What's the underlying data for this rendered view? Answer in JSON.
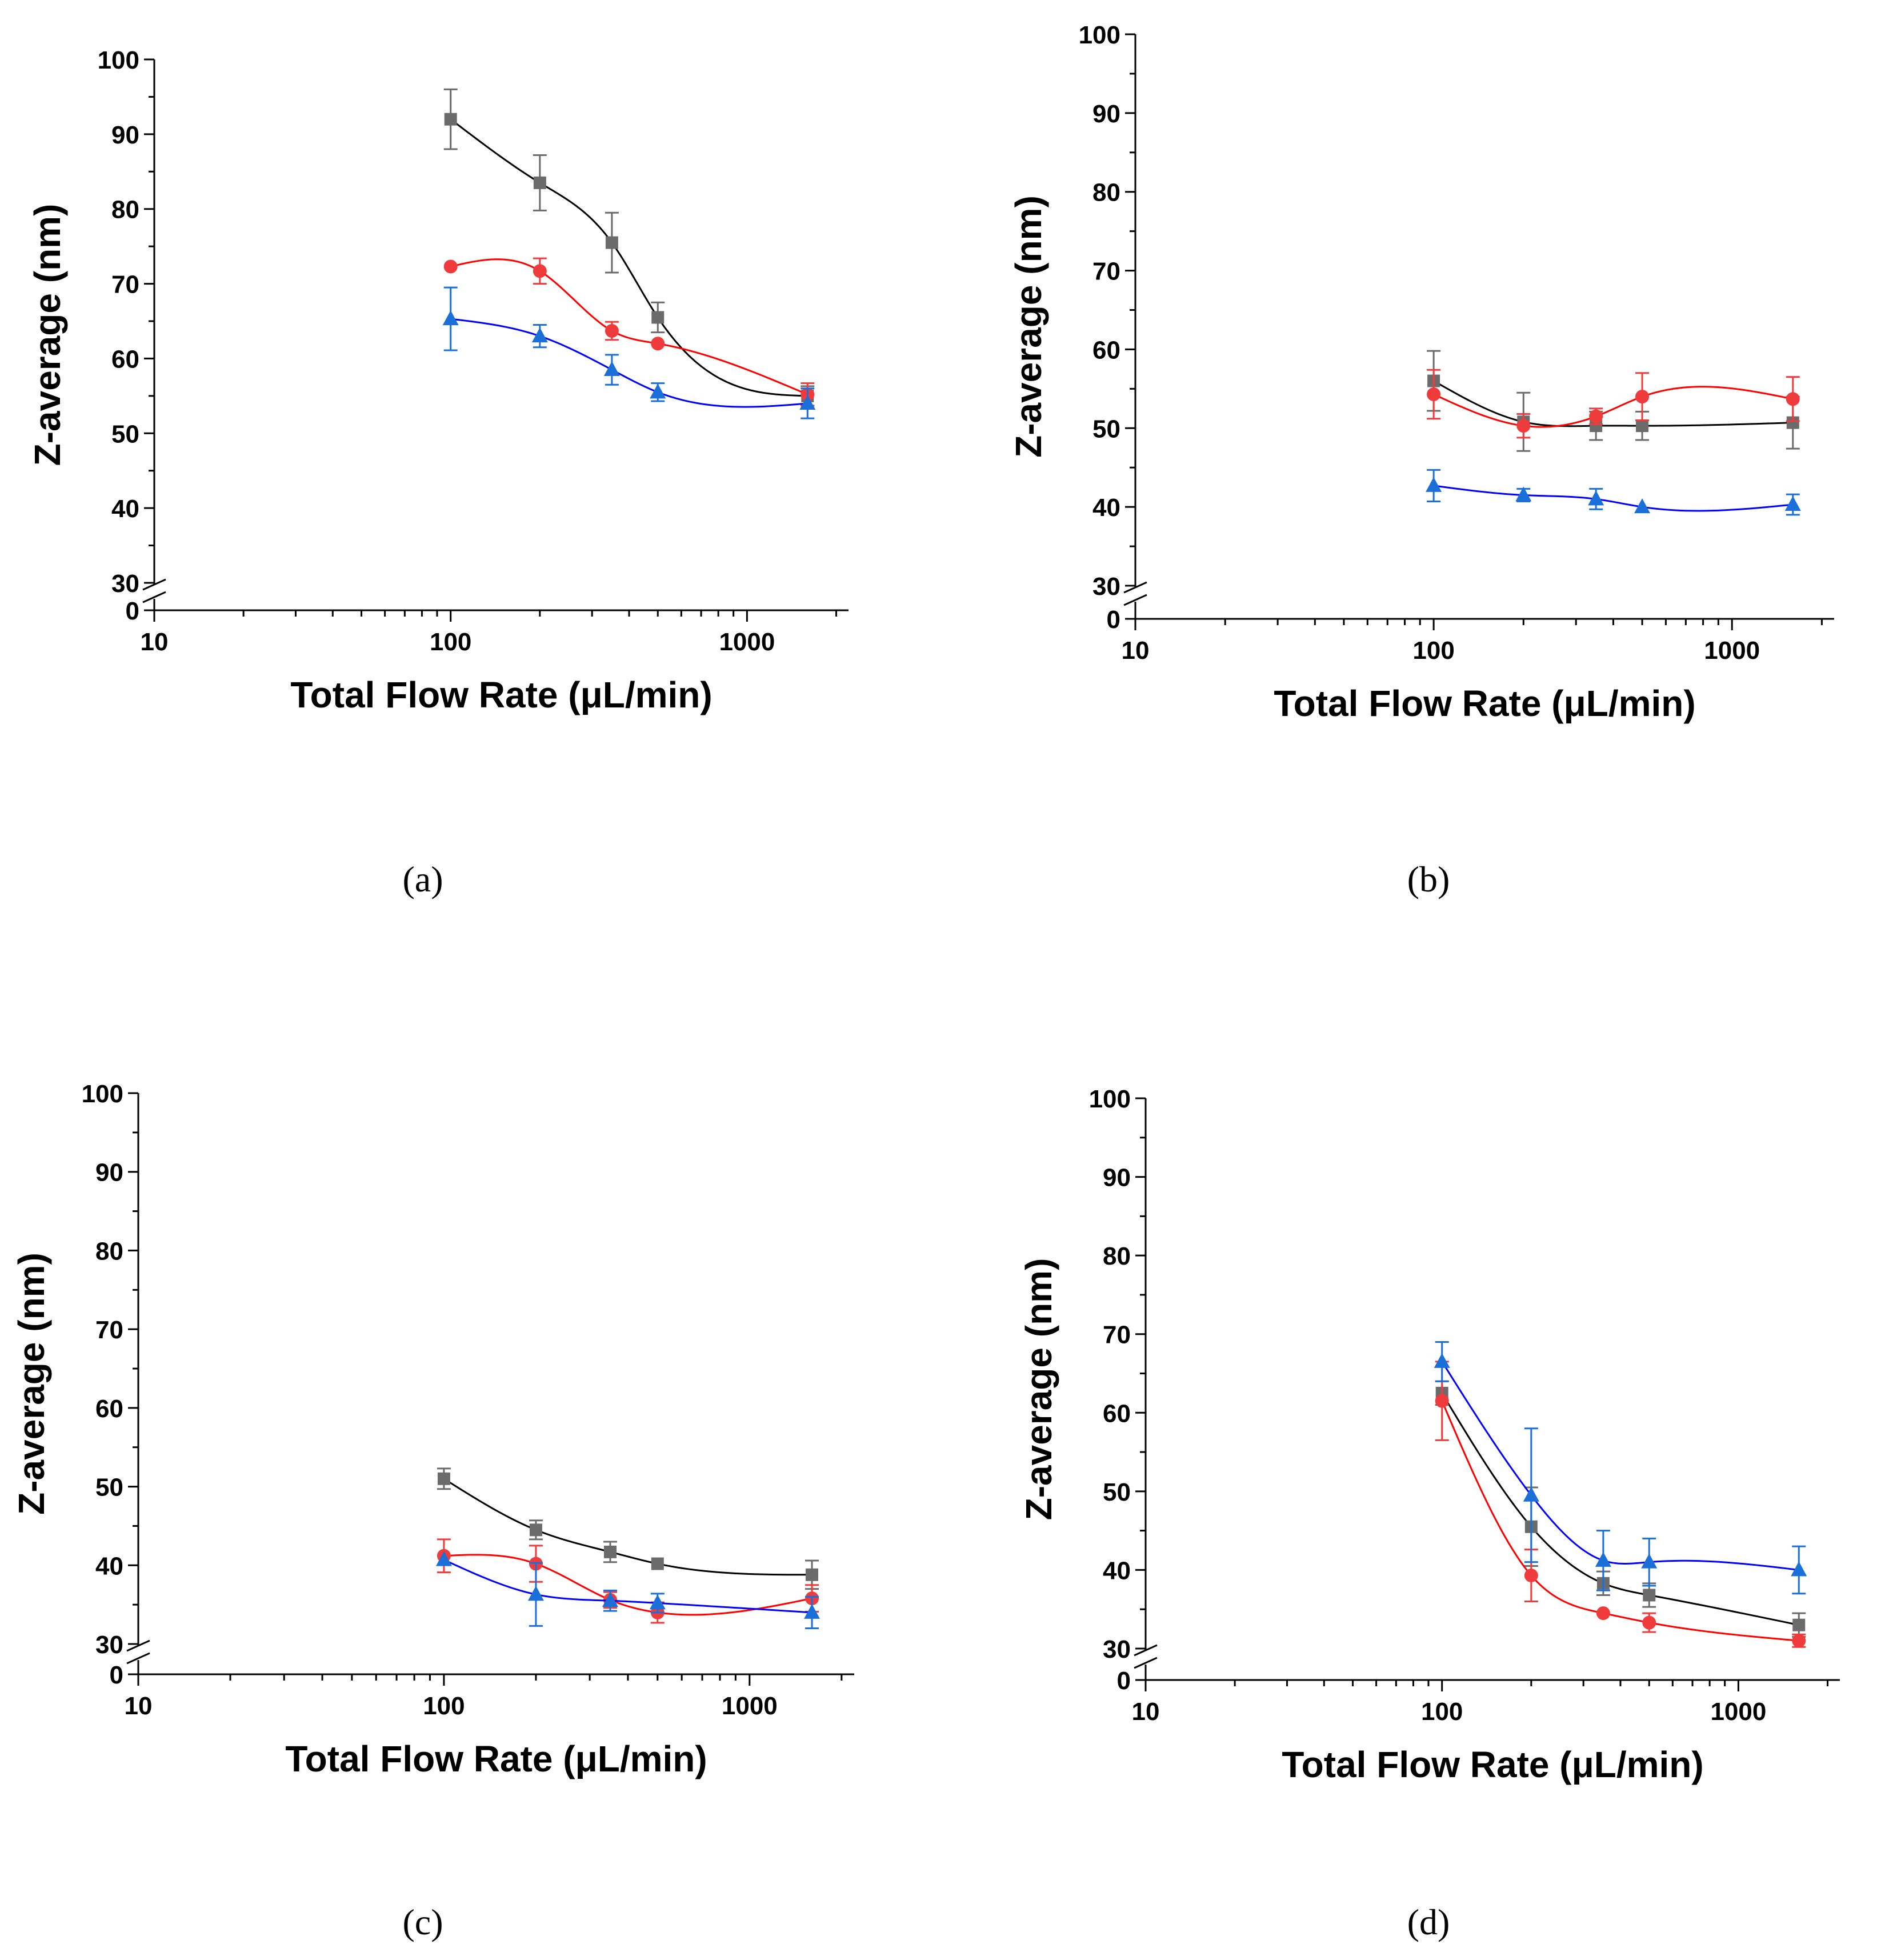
{
  "chart_data": [
    {
      "panel": "a",
      "caption": "(a)",
      "type": "scatter",
      "xlabel": "Total Flow Rate (μL/min)",
      "ylabel": "Z-average (nm)",
      "xscale": "log",
      "xlim": [
        10,
        2200
      ],
      "ylim": [
        30,
        100
      ],
      "axis_break": "between 0 and 30",
      "x_ticks": [
        10,
        100,
        1000
      ],
      "x_tick_labels": [
        "10",
        "100",
        "1000"
      ],
      "y_ticks": [
        0,
        30,
        40,
        50,
        60,
        70,
        80,
        90,
        100
      ],
      "y_tick_labels": [
        "0",
        "30",
        "40",
        "50",
        "60",
        "70",
        "80",
        "90",
        "100"
      ],
      "series": [
        {
          "name": "gray squares",
          "marker": "square",
          "color": "#6b6b6b",
          "line_color": "#000000",
          "x": [
            100,
            200,
            350,
            500,
            1600
          ],
          "y": [
            92,
            83.5,
            75.5,
            65.5,
            55
          ],
          "err": [
            4,
            3.7,
            4,
            2,
            1.3
          ]
        },
        {
          "name": "red circles",
          "marker": "circle",
          "color": "#ef3b3b",
          "line_color": "#ff0000",
          "x": [
            100,
            200,
            350,
            500,
            1600
          ],
          "y": [
            72.3,
            71.7,
            63.7,
            62,
            55.2
          ],
          "err": [
            0,
            1.7,
            1.2,
            0,
            1.5
          ]
        },
        {
          "name": "blue triangles",
          "marker": "triangle",
          "color": "#1a6fd9",
          "line_color": "#0000ff",
          "x": [
            100,
            200,
            350,
            500,
            1600
          ],
          "y": [
            65.3,
            63,
            58.5,
            55.5,
            54
          ],
          "err": [
            4.2,
            1.5,
            2,
            1.2,
            2
          ]
        }
      ]
    },
    {
      "panel": "b",
      "caption": "(b)",
      "type": "scatter",
      "xlabel": "Total Flow Rate (μL/min)",
      "ylabel": "Z-average (nm)",
      "xscale": "log",
      "xlim": [
        10,
        2200
      ],
      "ylim": [
        30,
        100
      ],
      "axis_break": "between 0 and 30",
      "x_ticks": [
        10,
        100,
        1000
      ],
      "x_tick_labels": [
        "10",
        "100",
        "1000"
      ],
      "y_ticks": [
        0,
        30,
        40,
        50,
        60,
        70,
        80,
        90,
        100
      ],
      "y_tick_labels": [
        "0",
        "30",
        "40",
        "50",
        "60",
        "70",
        "80",
        "90",
        "100"
      ],
      "series": [
        {
          "name": "gray squares",
          "marker": "square",
          "color": "#6b6b6b",
          "line_color": "#000000",
          "x": [
            100,
            200,
            350,
            500,
            1600
          ],
          "y": [
            56,
            50.8,
            50.3,
            50.3,
            50.7
          ],
          "err": [
            3.8,
            3.7,
            1.8,
            1.8,
            3.3
          ]
        },
        {
          "name": "red circles",
          "marker": "circle",
          "color": "#ef3b3b",
          "line_color": "#ff0000",
          "x": [
            100,
            200,
            350,
            500,
            1600
          ],
          "y": [
            54.3,
            50.3,
            51.5,
            54,
            53.7
          ],
          "err": [
            3.1,
            1.5,
            1,
            3,
            2.8
          ]
        },
        {
          "name": "blue triangles",
          "marker": "triangle",
          "color": "#1a6fd9",
          "line_color": "#0000ff",
          "x": [
            100,
            200,
            350,
            500,
            1600
          ],
          "y": [
            42.7,
            41.5,
            41,
            40,
            40.3
          ],
          "err": [
            2,
            0.8,
            1.3,
            0,
            1.3
          ]
        }
      ]
    },
    {
      "panel": "c",
      "caption": "(c)",
      "type": "scatter",
      "xlabel": "Total Flow Rate (μL/min)",
      "ylabel": "Z-average (nm)",
      "xscale": "log",
      "xlim": [
        10,
        2200
      ],
      "ylim": [
        30,
        100
      ],
      "axis_break": "between 0 and 30",
      "x_ticks": [
        10,
        100,
        1000
      ],
      "x_tick_labels": [
        "10",
        "100",
        "1000"
      ],
      "y_ticks": [
        0,
        30,
        40,
        50,
        60,
        70,
        80,
        90,
        100
      ],
      "y_tick_labels": [
        "0",
        "30",
        "40",
        "50",
        "60",
        "70",
        "80",
        "90",
        "100"
      ],
      "series": [
        {
          "name": "gray squares",
          "marker": "square",
          "color": "#6b6b6b",
          "line_color": "#000000",
          "x": [
            100,
            200,
            350,
            500,
            1600
          ],
          "y": [
            51,
            44.5,
            41.7,
            40.2,
            38.8
          ],
          "err": [
            1.3,
            1.2,
            1.3,
            0,
            1.8
          ]
        },
        {
          "name": "red circles",
          "marker": "circle",
          "color": "#ef3b3b",
          "line_color": "#ff0000",
          "x": [
            100,
            200,
            350,
            500,
            1600
          ],
          "y": [
            41.2,
            40.2,
            35.6,
            34,
            35.8
          ],
          "err": [
            2.1,
            2.3,
            1,
            1.3,
            1.7
          ]
        },
        {
          "name": "blue triangles",
          "marker": "triangle",
          "color": "#1a6fd9",
          "line_color": "#0000ff",
          "x": [
            100,
            200,
            350,
            500,
            1600
          ],
          "y": [
            40.7,
            36.3,
            35.5,
            35.2,
            34
          ],
          "err": [
            0,
            4,
            1.3,
            1.2,
            2
          ]
        }
      ]
    },
    {
      "panel": "d",
      "caption": "(d)",
      "type": "scatter",
      "xlabel": "Total Flow Rate (μL/min)",
      "ylabel": "Z-average (nm)",
      "xscale": "log",
      "xlim": [
        10,
        2200
      ],
      "ylim": [
        30,
        100
      ],
      "axis_break": "between 0 and 30",
      "x_ticks": [
        10,
        100,
        1000
      ],
      "x_tick_labels": [
        "10",
        "100",
        "1000"
      ],
      "y_ticks": [
        0,
        30,
        40,
        50,
        60,
        70,
        80,
        90,
        100
      ],
      "y_tick_labels": [
        "0",
        "30",
        "40",
        "50",
        "60",
        "70",
        "80",
        "90",
        "100"
      ],
      "series": [
        {
          "name": "gray squares",
          "marker": "square",
          "color": "#6b6b6b",
          "line_color": "#000000",
          "x": [
            100,
            200,
            350,
            500,
            1600
          ],
          "y": [
            62.5,
            45.5,
            38.3,
            36.8,
            33
          ],
          "err": [
            1.5,
            5,
            1.5,
            1.5,
            1.5
          ]
        },
        {
          "name": "red circles",
          "marker": "circle",
          "color": "#ef3b3b",
          "line_color": "#ff0000",
          "x": [
            100,
            200,
            350,
            500,
            1600
          ],
          "y": [
            61.5,
            39.3,
            34.5,
            33.3,
            31
          ],
          "err": [
            5,
            3.3,
            0,
            1.2,
            0.8
          ]
        },
        {
          "name": "blue triangles",
          "marker": "triangle",
          "color": "#1a6fd9",
          "line_color": "#0000ff",
          "x": [
            100,
            200,
            350,
            500,
            1600
          ],
          "y": [
            66.5,
            49.5,
            41.2,
            41,
            40
          ],
          "err": [
            2.5,
            8.5,
            3.8,
            3,
            3
          ]
        }
      ]
    }
  ]
}
